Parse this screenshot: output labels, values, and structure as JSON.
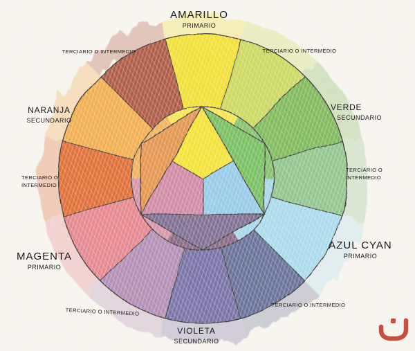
{
  "diagram": {
    "type": "color-wheel",
    "background": "#f7f4ee",
    "line_color": "#2e2c28"
  },
  "labels": {
    "amarillo": {
      "title": "AMARILLO",
      "subtitle": "PRIMARIO"
    },
    "verde": {
      "title": "VERDE",
      "subtitle": "SECUNDARIO"
    },
    "azul_cyan": {
      "title": "AZUL CYAN",
      "subtitle": "PRIMARIO"
    },
    "violeta": {
      "title": "VIOLETA",
      "subtitle": "SECUNDARIO"
    },
    "magenta": {
      "title": "MAGENTA",
      "subtitle": "PRIMARIO"
    },
    "naranja": {
      "title": "NARANJA",
      "subtitle": "SECUNDARIO"
    },
    "terciario_top_left": "TERCIARIO O INTERMEDIO",
    "terciario_top_right": "TERCIARIO O INTERMEDIO",
    "terciario_right": {
      "line1": "TERCIARIO O",
      "line2": "INTERMEDIO"
    },
    "terciario_bottom_right": "TERCIARIO O INTERMEDIO",
    "terciario_bottom_left": "TERCIARIO O INTERMEDIO",
    "terciario_left": {
      "line1": "TERCIARIO O",
      "line2": "INTERMEDIO"
    }
  },
  "wheel": {
    "ring_sectors": [
      {
        "name": "amarillo",
        "angle": 90,
        "color": "#f1dc20"
      },
      {
        "name": "terciario-amarillo-verde",
        "angle": 60,
        "color": "#c6d44f"
      },
      {
        "name": "verde",
        "angle": 30,
        "color": "#72b24b"
      },
      {
        "name": "terciario-verde-azul",
        "angle": 0,
        "color": "#86bf82"
      },
      {
        "name": "azul-cyan",
        "angle": -30,
        "color": "#a2d7eb"
      },
      {
        "name": "terciario-azul-violeta",
        "angle": -60,
        "color": "#5a628f"
      },
      {
        "name": "violeta",
        "angle": -90,
        "color": "#6b649c"
      },
      {
        "name": "terciario-violeta-magenta",
        "angle": -120,
        "color": "#aa82ae"
      },
      {
        "name": "magenta",
        "angle": -150,
        "color": "#e27983"
      },
      {
        "name": "terciario-magenta-naranja",
        "angle": 180,
        "color": "#dd5e23"
      },
      {
        "name": "naranja",
        "angle": 150,
        "color": "#f0a53c"
      },
      {
        "name": "terciario-naranja-amarillo",
        "angle": 120,
        "color": "#a64a30"
      }
    ],
    "inner_wedges": [
      {
        "name": "lens-amarillo",
        "angle": 90,
        "color": "#f3e23c"
      },
      {
        "name": "lens-verde",
        "angle": 30,
        "color": "#79bb5e"
      },
      {
        "name": "lens-azul",
        "angle": -30,
        "color": "#9dd2e8"
      },
      {
        "name": "lens-violeta",
        "angle": -90,
        "color": "#7c5a78"
      },
      {
        "name": "lens-magenta",
        "angle": -150,
        "color": "#d289a3"
      },
      {
        "name": "lens-naranja",
        "angle": 150,
        "color": "#edab4e"
      }
    ],
    "corner_triangles": [
      {
        "name": "triangle-naranja",
        "corner": 150,
        "color": "#e08a3a"
      },
      {
        "name": "triangle-verde",
        "corner": 30,
        "color": "#68b84f"
      },
      {
        "name": "triangle-violeta",
        "corner": 270,
        "color": "#716087"
      }
    ],
    "kites": [
      {
        "name": "kite-amarillo",
        "vertex": 90,
        "color": "#f3df20"
      },
      {
        "name": "kite-magenta",
        "vertex": 210,
        "color": "#cb7d9b"
      },
      {
        "name": "kite-azul",
        "vertex": 330,
        "color": "#8cc6e7"
      }
    ]
  },
  "logo": {
    "name": "publisher-mark",
    "color": "#c6503b"
  }
}
